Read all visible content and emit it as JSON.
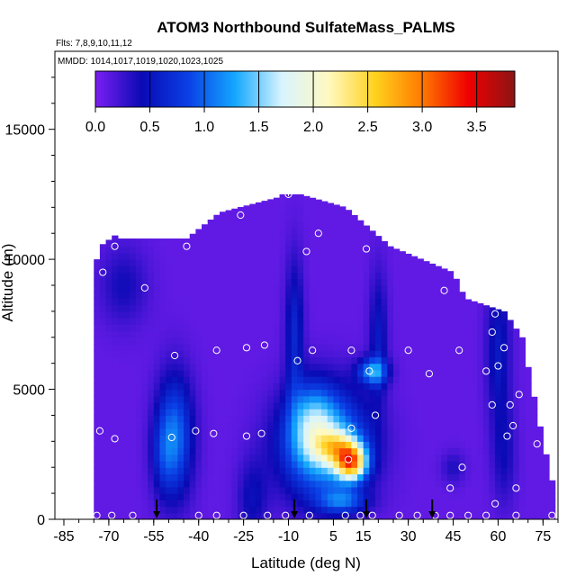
{
  "chart_data": {
    "type": "heatmap",
    "title": "ATOM3 Northbound SulfateMass_PALMS",
    "flights_label": "Flts: 7,8,9,10,11,12",
    "dates_label": "MMDD: 1014,1017,1019,1020,1023,1025",
    "xlabel": "Latitude (deg N)",
    "ylabel": "Altitude (m)",
    "x_ticks": [
      "-85",
      "-70",
      "-55",
      "-40",
      "-25",
      "-10",
      "5",
      "15",
      "30",
      "45",
      "60",
      "75"
    ],
    "y_ticks": [
      "0",
      "5000",
      "10000",
      "15000"
    ],
    "xlim": [
      -88,
      80
    ],
    "ylim": [
      0,
      18000
    ],
    "colorbar": {
      "ticks": [
        "0.0",
        "0.5",
        "1.0",
        "1.5",
        "2.0",
        "2.5",
        "3.0",
        "3.5"
      ],
      "range": [
        0,
        3.85
      ],
      "colors": [
        "#7b1ff2",
        "#0a0ab4",
        "#0a40e6",
        "#14a8ff",
        "#d8f4ff",
        "#fff9c0",
        "#ffd21e",
        "#ff7a00",
        "#f00000",
        "#8c1414"
      ]
    },
    "sample_points": [
      [
        -74,
        150
      ],
      [
        -69,
        150
      ],
      [
        -62,
        150
      ],
      [
        -40,
        150
      ],
      [
        -34,
        150
      ],
      [
        -25,
        150
      ],
      [
        -17,
        150
      ],
      [
        -11,
        150
      ],
      [
        -3,
        150
      ],
      [
        9,
        150
      ],
      [
        14,
        150
      ],
      [
        18,
        150
      ],
      [
        27,
        150
      ],
      [
        33,
        150
      ],
      [
        39,
        150
      ],
      [
        44,
        150
      ],
      [
        50,
        150
      ],
      [
        56,
        150
      ],
      [
        66,
        150
      ],
      [
        78,
        150
      ],
      [
        -73,
        3400
      ],
      [
        -68,
        3100
      ],
      [
        -49,
        3150
      ],
      [
        -41,
        3400
      ],
      [
        -35,
        3300
      ],
      [
        -24,
        3200
      ],
      [
        -19,
        3300
      ],
      [
        11,
        3500
      ],
      [
        19,
        4000
      ],
      [
        63,
        3200
      ],
      [
        65,
        3600
      ],
      [
        67,
        4800
      ],
      [
        73,
        2900
      ],
      [
        -48,
        6300
      ],
      [
        -34,
        6500
      ],
      [
        -24,
        6600
      ],
      [
        -18,
        6700
      ],
      [
        -7,
        6100
      ],
      [
        -2,
        6500
      ],
      [
        11,
        6500
      ],
      [
        17,
        5700
      ],
      [
        30,
        6500
      ],
      [
        37,
        5600
      ],
      [
        47,
        6500
      ],
      [
        56,
        5700
      ],
      [
        60,
        5900
      ],
      [
        62,
        6600
      ],
      [
        73,
        6600
      ],
      [
        -72,
        9500
      ],
      [
        -58,
        8900
      ],
      [
        -68,
        10500
      ],
      [
        -44,
        10500
      ],
      [
        -4,
        10300
      ],
      [
        0,
        11000
      ],
      [
        16,
        10400
      ],
      [
        -26,
        11700
      ],
      [
        -10,
        12500
      ],
      [
        42,
        8800
      ],
      [
        59,
        7900
      ],
      [
        58,
        7200
      ],
      [
        68,
        8400
      ],
      [
        10,
        2300
      ],
      [
        48,
        2000
      ],
      [
        44,
        1200
      ],
      [
        59,
        600
      ],
      [
        66,
        1200
      ],
      [
        64,
        4400
      ],
      [
        58,
        4400
      ]
    ],
    "flight_markers": [
      -54,
      -8,
      16,
      38
    ]
  }
}
